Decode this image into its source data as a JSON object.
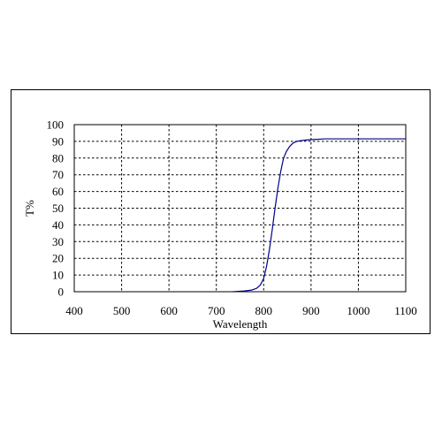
{
  "chart_data": {
    "type": "line",
    "title": "",
    "xlabel": "Wavelength",
    "ylabel": "T%",
    "xlim": [
      400,
      1100
    ],
    "ylim": [
      0,
      100
    ],
    "x_ticks": [
      400,
      500,
      600,
      700,
      800,
      900,
      1000,
      1100
    ],
    "y_ticks": [
      0,
      10,
      20,
      30,
      40,
      50,
      60,
      70,
      80,
      90,
      100
    ],
    "grid": true,
    "legend": "none",
    "series": [
      {
        "color": "#00008b",
        "x": [
          735,
          760,
          775,
          785,
          793,
          800,
          806,
          812,
          818,
          824,
          830,
          836,
          842,
          848,
          855,
          862,
          870,
          880,
          890,
          900,
          930,
          1000,
          1100
        ],
        "y": [
          0,
          0.5,
          1,
          2,
          4,
          8,
          15,
          25,
          37,
          50,
          62,
          72,
          80,
          84,
          87,
          89,
          90,
          90.5,
          90.8,
          91,
          91.5,
          91.5,
          91.5
        ]
      }
    ]
  }
}
